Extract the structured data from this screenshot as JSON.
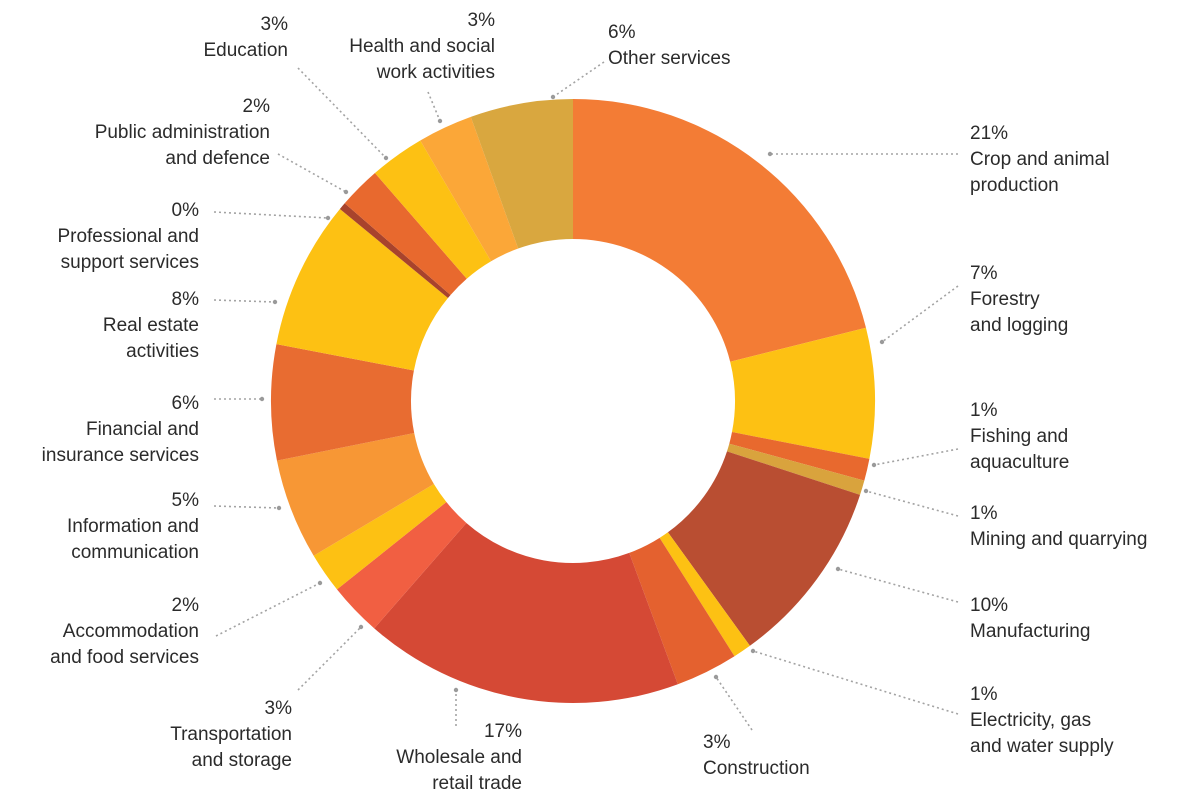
{
  "chart_data": {
    "type": "pie",
    "donut": true,
    "title": "",
    "legend": "none",
    "slices": [
      {
        "value_label": "21%",
        "lines": [
          "Crop and animal",
          "production"
        ],
        "value": 21.5,
        "color": "#F37C35"
      },
      {
        "value_label": "7%",
        "lines": [
          "Forestry",
          "and logging"
        ],
        "value": 7.1,
        "color": "#FDC113"
      },
      {
        "value_label": "1%",
        "lines": [
          "Fishing and",
          "aquaculture"
        ],
        "value": 1.2,
        "color": "#E8692E"
      },
      {
        "value_label": "1%",
        "lines": [
          "Mining and quarrying"
        ],
        "value": 0.8,
        "color": "#D9A33D"
      },
      {
        "value_label": "10%",
        "lines": [
          "Manufacturing"
        ],
        "value": 10.2,
        "color": "#B94E32"
      },
      {
        "value_label": "1%",
        "lines": [
          "Electricity, gas",
          "and water supply"
        ],
        "value": 1.0,
        "color": "#FDC113"
      },
      {
        "value_label": "3%",
        "lines": [
          "Construction"
        ],
        "value": 3.4,
        "color": "#E4612F"
      },
      {
        "value_label": "17%",
        "lines": [
          "Wholesale and",
          "retail trade"
        ],
        "value": 17.4,
        "color": "#D54935"
      },
      {
        "value_label": "3%",
        "lines": [
          "Transportation",
          "and storage"
        ],
        "value": 2.9,
        "color": "#F15F42"
      },
      {
        "value_label": "2%",
        "lines": [
          "Accommodation",
          "and food services"
        ],
        "value": 2.2,
        "color": "#FDC113"
      },
      {
        "value_label": "5%",
        "lines": [
          "Information and",
          "communication"
        ],
        "value": 5.5,
        "color": "#F79735"
      },
      {
        "value_label": "6%",
        "lines": [
          "Financial and",
          "insurance services"
        ],
        "value": 6.3,
        "color": "#E86C31"
      },
      {
        "value_label": "8%",
        "lines": [
          "Real estate",
          "activities"
        ],
        "value": 8.1,
        "color": "#FDC113"
      },
      {
        "value_label": "0%",
        "lines": [
          "Professional and",
          "support services"
        ],
        "value": 0.4,
        "color": "#A8432C"
      },
      {
        "value_label": "2%",
        "lines": [
          "Public administration",
          "and defence"
        ],
        "value": 2.3,
        "color": "#E8692E"
      },
      {
        "value_label": "3%",
        "lines": [
          "Education"
        ],
        "value": 3.0,
        "color": "#FDC113"
      },
      {
        "value_label": "3%",
        "lines": [
          "Health and social",
          "work activities"
        ],
        "value": 3.0,
        "color": "#FBA738"
      },
      {
        "value_label": "6%",
        "lines": [
          "Other services"
        ],
        "value": 5.6,
        "color": "#D9A73F"
      }
    ]
  }
}
